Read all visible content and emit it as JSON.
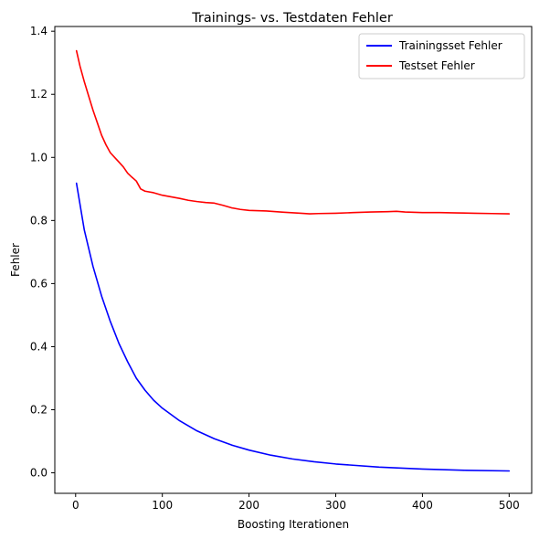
{
  "chart_data": {
    "type": "line",
    "title": "Trainings- vs. Testdaten Fehler",
    "xlabel": "Boosting Iterationen",
    "ylabel": "Fehler",
    "xlim": [
      -24,
      526
    ],
    "ylim": [
      -0.065,
      1.415
    ],
    "xticks": [
      0,
      100,
      200,
      300,
      400,
      500
    ],
    "yticks": [
      0.0,
      0.2,
      0.4,
      0.6,
      0.8,
      1.0,
      1.2,
      1.4
    ],
    "xtick_labels": [
      "0",
      "100",
      "200",
      "300",
      "400",
      "500"
    ],
    "ytick_labels": [
      "0.0",
      "0.2",
      "0.4",
      "0.6",
      "0.8",
      "1.0",
      "1.2",
      "1.4"
    ],
    "grid": false,
    "legend_position": "top-right",
    "series": [
      {
        "name": "Trainingsset Fehler",
        "color": "#0000ff",
        "x": [
          1,
          10,
          20,
          30,
          40,
          50,
          60,
          70,
          80,
          90,
          100,
          120,
          140,
          160,
          180,
          200,
          225,
          250,
          275,
          300,
          350,
          400,
          450,
          500
        ],
        "y": [
          0.918,
          0.77,
          0.655,
          0.56,
          0.48,
          0.41,
          0.352,
          0.3,
          0.262,
          0.23,
          0.205,
          0.165,
          0.133,
          0.108,
          0.088,
          0.072,
          0.056,
          0.044,
          0.035,
          0.028,
          0.018,
          0.012,
          0.008,
          0.006
        ]
      },
      {
        "name": "Testset Fehler",
        "color": "#ff0000",
        "x": [
          1,
          5,
          10,
          15,
          20,
          25,
          30,
          35,
          40,
          45,
          50,
          55,
          60,
          65,
          70,
          75,
          80,
          90,
          100,
          110,
          120,
          130,
          140,
          150,
          160,
          170,
          180,
          190,
          200,
          220,
          240,
          260,
          270,
          280,
          300,
          320,
          340,
          360,
          370,
          380,
          400,
          420,
          440,
          460,
          480,
          500
        ],
        "y": [
          1.338,
          1.29,
          1.24,
          1.195,
          1.15,
          1.11,
          1.07,
          1.04,
          1.015,
          1.0,
          0.985,
          0.97,
          0.95,
          0.937,
          0.925,
          0.9,
          0.893,
          0.888,
          0.88,
          0.875,
          0.87,
          0.864,
          0.86,
          0.857,
          0.855,
          0.848,
          0.84,
          0.835,
          0.832,
          0.83,
          0.826,
          0.823,
          0.821,
          0.822,
          0.823,
          0.825,
          0.827,
          0.828,
          0.829,
          0.827,
          0.825,
          0.825,
          0.824,
          0.823,
          0.822,
          0.821
        ]
      }
    ]
  }
}
